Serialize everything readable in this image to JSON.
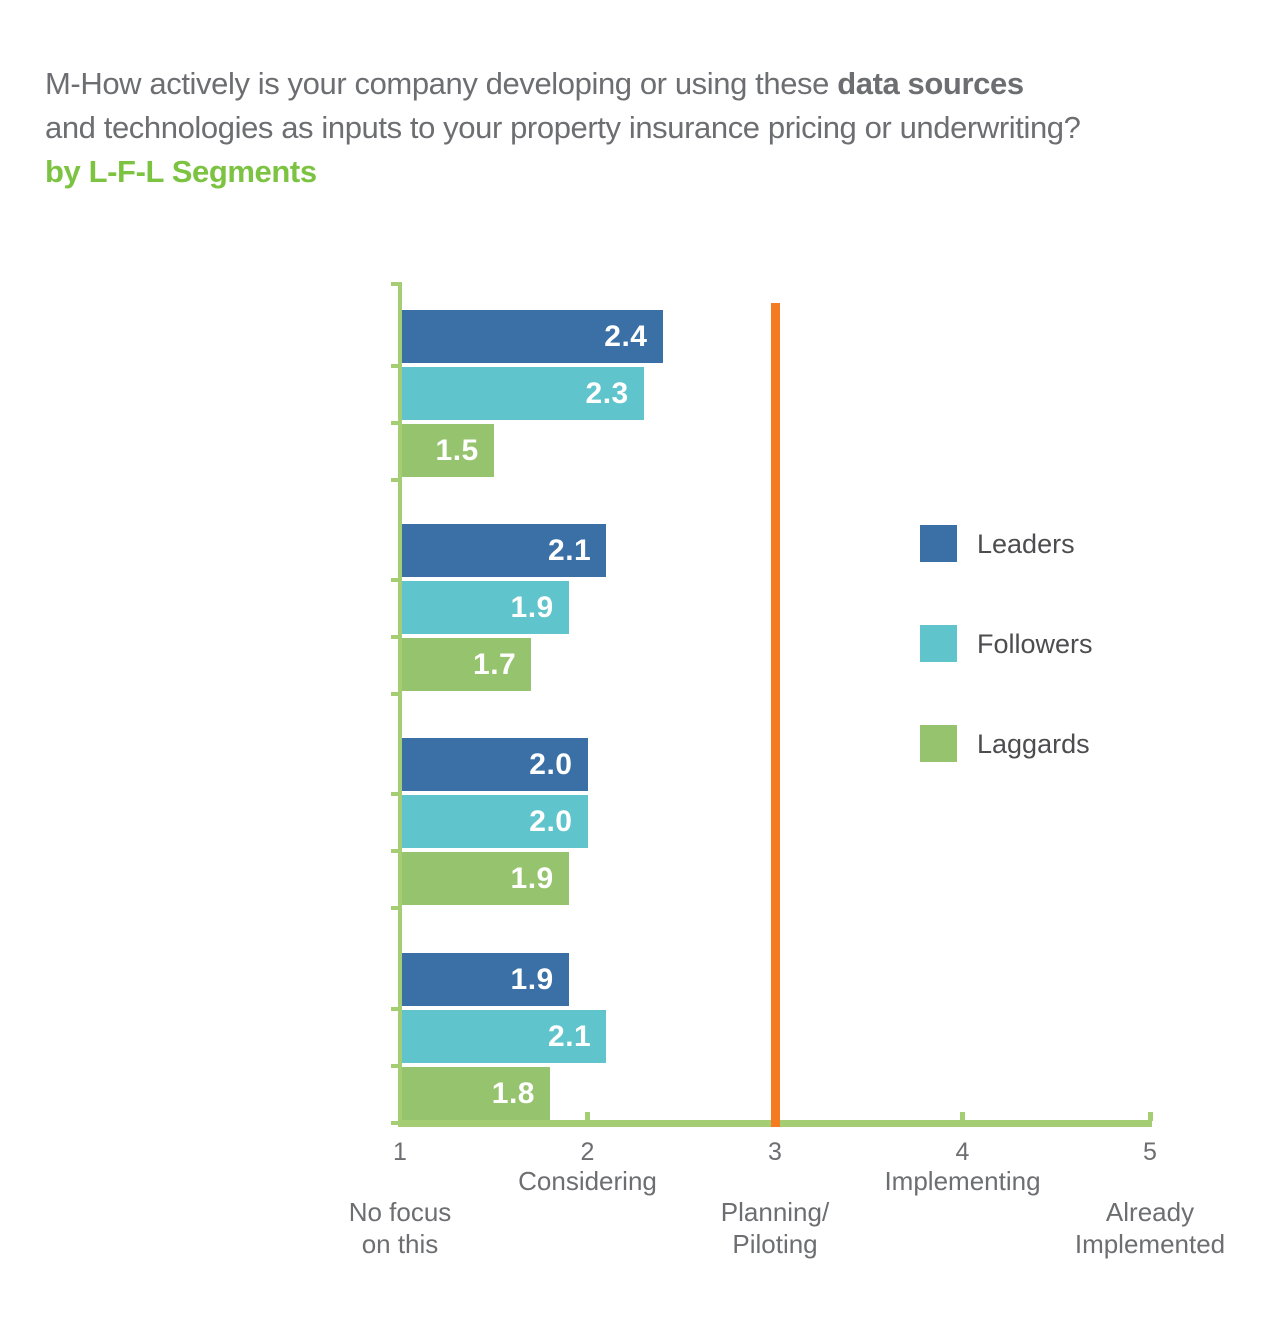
{
  "title": {
    "line1_normal": "M-How actively is your company developing or using these ",
    "line1_bold": "data sources",
    "line2": "and technologies as inputs to your property insurance pricing or underwriting?",
    "subtitle": "by L-F-L Segments"
  },
  "colors": {
    "title_gray": "#6D6E71",
    "subtitle_green": "#7CC342",
    "leaders_blue": "#3A70A6",
    "followers_teal": "#5FC4CB",
    "laggards_green": "#96C46E",
    "axis_green": "#A5CE74",
    "reference_line_orange": "#F47B20",
    "bar_value_text": "#FFFFFF",
    "axis_text_gray": "#6D6E71",
    "legend_text_gray": "#4D4D4F"
  },
  "legend": {
    "items": [
      {
        "label": "Leaders",
        "color": "#3A70A6"
      },
      {
        "label": "Followers",
        "color": "#5FC4CB"
      },
      {
        "label": "Laggards",
        "color": "#96C46E"
      }
    ]
  },
  "chart_data": {
    "type": "bar",
    "orientation": "horizontal",
    "title": "M-How actively is your company developing or using these data sources and technologies as inputs to your property insurance pricing or underwriting? by L-F-L Segments",
    "categories": [
      "",
      "",
      "",
      ""
    ],
    "series": [
      {
        "name": "Leaders",
        "color": "#3A70A6",
        "values": [
          2.4,
          2.1,
          2.0,
          1.9
        ],
        "labels": [
          "2.4",
          "2.1",
          "2.0",
          "1.9"
        ]
      },
      {
        "name": "Followers",
        "color": "#5FC4CB",
        "values": [
          2.3,
          1.9,
          2.0,
          2.1
        ],
        "labels": [
          "2.3",
          "1.9",
          "2.0",
          "2.1"
        ]
      },
      {
        "name": "Laggards",
        "color": "#96C46E",
        "values": [
          1.5,
          1.7,
          1.9,
          1.8
        ],
        "labels": [
          "1.5",
          "1.7",
          "1.9",
          "1.8"
        ]
      }
    ],
    "xlim": [
      1,
      5
    ],
    "grid": false,
    "legend_position": "right",
    "value_labels_shown": true,
    "reference_line_x": 3,
    "x_axis": {
      "ticks": [
        {
          "num": "1",
          "label_lines": [
            "No focus",
            "on this"
          ],
          "row": "lower"
        },
        {
          "num": "2",
          "label_lines": [
            "Considering"
          ],
          "row": "upper"
        },
        {
          "num": "3",
          "label_lines": [
            "Planning/",
            "Piloting"
          ],
          "row": "lower"
        },
        {
          "num": "4",
          "label_lines": [
            "Implementing"
          ],
          "row": "upper"
        },
        {
          "num": "5",
          "label_lines": [
            "Already",
            "Implemented"
          ],
          "row": "lower"
        }
      ]
    }
  }
}
